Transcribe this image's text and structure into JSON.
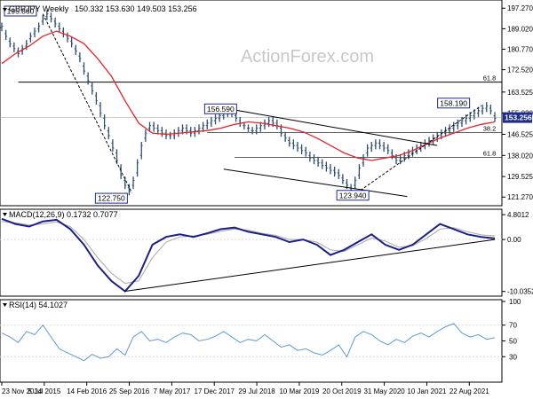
{
  "header": {
    "title": "GBPJPY Weekly",
    "ohlc": "150.332 153.630 149.503 153.256"
  },
  "watermark": "ActionForex.com",
  "colors": {
    "price": "#2f4f6f",
    "ema": "#e4232b",
    "macd": "#1b1f86",
    "signal": "#a9a9a9",
    "rsi": "#5b9bd5",
    "fib": "#000000",
    "grid": "#d9d9d9",
    "label_box": "#1c2b8c",
    "current_box": "#1c2b8c"
  },
  "chart_data": [
    {
      "type": "line",
      "panel": "price",
      "title": "GBPJPY Weekly",
      "ohlc_last": [
        150.332,
        153.63,
        149.503,
        153.256
      ],
      "x_tick_labels": [
        "23 Nov 2014",
        "5 Jul 2015",
        "14 Feb 2016",
        "25 Sep 2016",
        "7 May 2017",
        "17 Dec 2017",
        "29 Jul 2018",
        "10 Mar 2019",
        "20 Oct 2019",
        "31 May 2020",
        "10 Jan 2021",
        "22 Aug 2021"
      ],
      "y_tick_labels": [
        "197.270",
        "189.020",
        "180.770",
        "172.520",
        "163.525",
        "155.020",
        "146.525",
        "138.020",
        "129.525",
        "121.270"
      ],
      "ylim": [
        118.5,
        199.5
      ],
      "current_price": "153.256",
      "series": [
        {
          "key": "price",
          "x": [
            0,
            3,
            6,
            9,
            12,
            15,
            18,
            21,
            24,
            27,
            30,
            33,
            36,
            39,
            42,
            45,
            48,
            51,
            54,
            57,
            60,
            63,
            66,
            69,
            72,
            75,
            78,
            81,
            84,
            87,
            90,
            93,
            96,
            99,
            102,
            105,
            108,
            111,
            114,
            117,
            120,
            123,
            126,
            129,
            132,
            135,
            138,
            141,
            144,
            147,
            150,
            153,
            156,
            159,
            162,
            165,
            168,
            171,
            174,
            177,
            180,
            183,
            186,
            189,
            192,
            195,
            198,
            201,
            204,
            207,
            210,
            213,
            216,
            219,
            222,
            225,
            228,
            231,
            234,
            237,
            240,
            243,
            246,
            249,
            252,
            255,
            258,
            261,
            264,
            267,
            270,
            273,
            276,
            279,
            282,
            285,
            288,
            291,
            294,
            297,
            300,
            303,
            306,
            309,
            312,
            315,
            318,
            321,
            324,
            327,
            330,
            333,
            336,
            339,
            342,
            345,
            348,
            351,
            354,
            357,
            360
          ],
          "values": [
            190,
            186,
            183,
            181,
            179,
            181,
            183,
            186,
            188,
            190,
            193,
            195,
            193,
            191,
            189,
            187,
            185,
            183,
            180,
            177,
            172,
            168,
            164,
            160,
            155,
            150,
            146,
            141,
            136,
            130,
            126,
            123.5,
            128,
            135,
            142,
            147,
            150,
            149,
            148,
            147,
            146,
            146,
            147,
            148,
            149,
            148,
            147,
            148,
            149,
            150,
            151,
            152,
            153,
            154,
            155,
            156.5,
            155,
            153,
            151,
            150,
            149,
            148,
            149,
            150,
            151,
            152,
            151,
            150,
            147,
            145,
            143,
            142,
            141,
            140,
            139,
            137,
            136,
            135,
            134,
            133,
            132,
            131,
            130,
            128,
            126,
            124,
            128,
            133,
            137,
            141,
            142,
            143,
            142,
            141,
            140,
            138,
            136,
            137,
            138,
            139,
            140,
            141,
            142,
            143,
            144,
            145,
            146,
            147,
            148,
            149,
            150,
            151,
            152,
            153,
            154,
            155,
            156,
            157,
            158,
            156,
            153
          ],
          "open": [
            189.5,
            187,
            184,
            182,
            180,
            180,
            182,
            185,
            187,
            189,
            192,
            194,
            194,
            192,
            190,
            188,
            186,
            184,
            181,
            178,
            174,
            170,
            166,
            162,
            158,
            153,
            148,
            143,
            139,
            133,
            128,
            125,
            126,
            131,
            138,
            145,
            149,
            150,
            149,
            148,
            147,
            146,
            146,
            147,
            148,
            149,
            148,
            147,
            148,
            149,
            150,
            151,
            152,
            153,
            154,
            155,
            156,
            154,
            152,
            150,
            149,
            148,
            148,
            149,
            150,
            151,
            152,
            151,
            149,
            146,
            144,
            143,
            142,
            141,
            140,
            138,
            137,
            136,
            135,
            134,
            133,
            132,
            131,
            129,
            127,
            125,
            126,
            130,
            135,
            139,
            141,
            142,
            143,
            142,
            141,
            139,
            137,
            136,
            137,
            138,
            139,
            140,
            141,
            142,
            143,
            144,
            145,
            146,
            147,
            148,
            149,
            150,
            151,
            152,
            153,
            154,
            155,
            156,
            157,
            157,
            154
          ]
        },
        {
          "key": "ema",
          "x": [
            0,
            10,
            20,
            30,
            40,
            50,
            60,
            70,
            80,
            90,
            100,
            110,
            120,
            130,
            140,
            150,
            160,
            170,
            180,
            190,
            200,
            210,
            220,
            230,
            240,
            250,
            260,
            270,
            280,
            290,
            300,
            310,
            320,
            330,
            340,
            350,
            360
          ],
          "values": [
            175,
            179,
            182,
            186,
            188,
            186,
            183,
            177,
            170,
            160,
            151,
            147,
            146.5,
            147,
            147.5,
            148,
            149,
            150.5,
            151.5,
            151,
            150,
            149,
            147.5,
            145,
            142,
            139,
            137,
            136,
            137,
            138,
            140,
            142.5,
            145,
            147,
            149,
            150.5,
            151.5
          ]
        }
      ],
      "annotations": [
        {
          "label": "195.860",
          "x": 30,
          "y": 195.86
        },
        {
          "label": "122.750",
          "x": 93,
          "y": 122.75
        },
        {
          "label": "156.590",
          "x": 165,
          "y": 156.59
        },
        {
          "label": "123.940",
          "x": 255,
          "y": 123.94
        },
        {
          "label": "158.190",
          "x": 339,
          "y": 158.19
        },
        {
          "label": "61.8",
          "y": 167.5
        },
        {
          "label": "38.2",
          "y": 147.2
        },
        {
          "label": "61.8",
          "y": 137.2
        }
      ],
      "trendlines": [
        {
          "x": [
            158,
            318
          ],
          "y": [
            157.5,
            142
          ]
        },
        {
          "x": [
            162,
            296
          ],
          "y": [
            132.5,
            121.5
          ]
        },
        {
          "x": [
            30,
            95
          ],
          "y": [
            195,
            123
          ]
        },
        {
          "x": [
            262,
            350
          ],
          "y": [
            124,
            158
          ]
        }
      ]
    },
    {
      "type": "line",
      "panel": "macd",
      "title": "MACD(12,26,9) 0.1732 0.7077",
      "y_tick_labels": [
        "4.8012",
        "0.00",
        "-10.0352"
      ],
      "ylim": [
        -10.6,
        5.5
      ],
      "series": [
        {
          "key": "macd",
          "x": [
            0,
            10,
            20,
            30,
            40,
            50,
            60,
            70,
            80,
            90,
            100,
            110,
            120,
            130,
            140,
            150,
            160,
            170,
            180,
            190,
            200,
            210,
            220,
            230,
            240,
            250,
            260,
            270,
            280,
            290,
            300,
            310,
            320,
            330,
            340,
            350,
            360
          ],
          "values": [
            4,
            3,
            2.5,
            3.5,
            3.8,
            2,
            -1,
            -5,
            -8,
            -10,
            -7,
            -1,
            0.5,
            1,
            0.5,
            1.2,
            2,
            2.3,
            1.5,
            1,
            0.5,
            -0.5,
            0,
            -1,
            -3,
            -2,
            -0.5,
            1,
            -1,
            -2,
            -1,
            1,
            3,
            2,
            1,
            0.5,
            0.2
          ]
        },
        {
          "key": "signal",
          "x": [
            0,
            10,
            20,
            30,
            40,
            50,
            60,
            70,
            80,
            90,
            100,
            110,
            120,
            130,
            140,
            150,
            160,
            170,
            180,
            190,
            200,
            210,
            220,
            230,
            240,
            250,
            260,
            270,
            280,
            290,
            300,
            310,
            320,
            330,
            340,
            350,
            360
          ],
          "values": [
            3.5,
            3.2,
            2.8,
            3,
            3.4,
            2.5,
            0,
            -3.5,
            -6.5,
            -8.5,
            -8,
            -3.5,
            -0.5,
            0.5,
            0.7,
            1,
            1.6,
            2,
            1.8,
            1.2,
            0.8,
            0,
            0,
            -0.5,
            -2,
            -2.3,
            -1,
            0.3,
            -0.3,
            -1.5,
            -1.2,
            0.2,
            2,
            2.3,
            1.5,
            0.9,
            0.7
          ]
        }
      ],
      "trendlines": [
        {
          "x": [
            90,
            360
          ],
          "y": [
            -10.0,
            0.0
          ]
        }
      ]
    },
    {
      "type": "line",
      "panel": "rsi",
      "title": "RSI(14) 54.1027",
      "y_tick_labels": [
        "100",
        "70",
        "50",
        "30"
      ],
      "ylim": [
        0,
        100
      ],
      "x_tick_labels": [
        "23 Nov 2014",
        "5 Jul 2015",
        "14 Feb 2016",
        "25 Sep 2016",
        "7 May 2017",
        "17 Dec 2017",
        "29 Jul 2018",
        "10 Mar 2019",
        "20 Oct 2019",
        "31 May 2020",
        "10 Jan 2021",
        "22 Aug 2021"
      ],
      "series": [
        {
          "key": "rsi",
          "x": [
            0,
            6,
            12,
            18,
            24,
            30,
            36,
            42,
            48,
            54,
            60,
            66,
            72,
            78,
            84,
            90,
            96,
            102,
            108,
            114,
            120,
            126,
            132,
            138,
            144,
            150,
            156,
            162,
            168,
            174,
            180,
            186,
            192,
            198,
            204,
            210,
            216,
            222,
            228,
            234,
            240,
            246,
            252,
            258,
            264,
            270,
            276,
            282,
            288,
            294,
            300,
            306,
            312,
            318,
            324,
            330,
            336,
            342,
            348,
            354,
            360
          ],
          "values": [
            60,
            55,
            48,
            62,
            58,
            70,
            55,
            40,
            35,
            30,
            25,
            33,
            28,
            30,
            40,
            32,
            55,
            62,
            50,
            52,
            48,
            55,
            60,
            58,
            50,
            52,
            56,
            62,
            55,
            48,
            52,
            50,
            58,
            50,
            42,
            45,
            38,
            40,
            35,
            32,
            38,
            45,
            30,
            55,
            62,
            58,
            50,
            45,
            52,
            48,
            56,
            60,
            55,
            62,
            68,
            72,
            60,
            55,
            58,
            52,
            54
          ]
        }
      ]
    }
  ]
}
